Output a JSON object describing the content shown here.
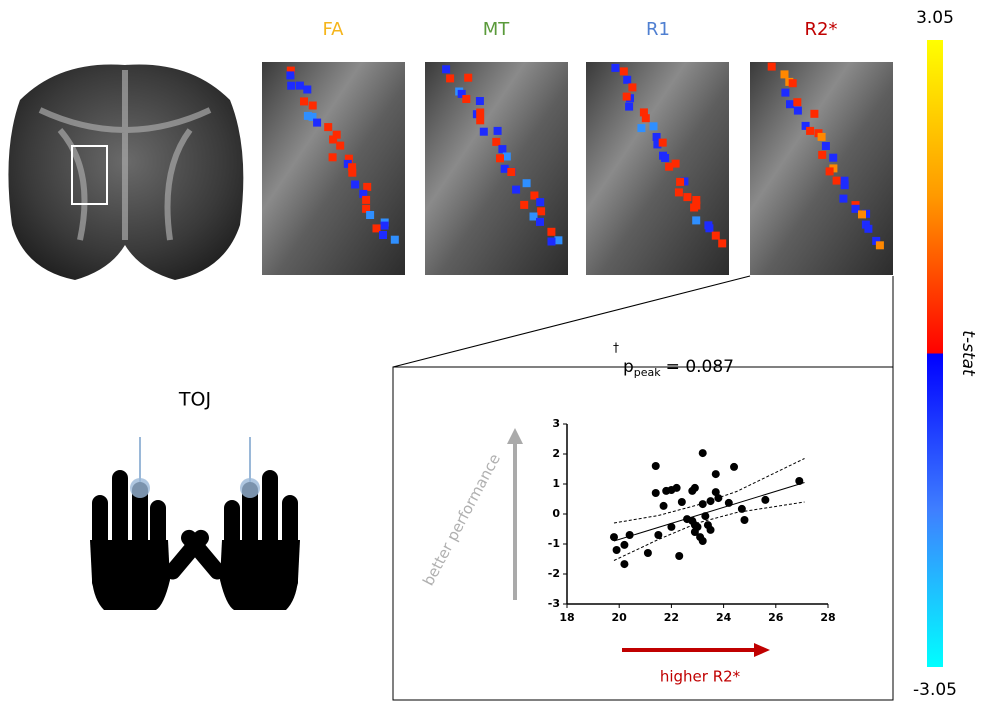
{
  "panels": {
    "fa": "FA",
    "mt": "MT",
    "r1": "R1",
    "r2s": "R2*"
  },
  "colorbar": {
    "max": "3.05",
    "min": "-3.05",
    "label": "t-stat"
  },
  "task": "TOJ",
  "annotation": {
    "dagger": "†",
    "p": "p",
    "sub": "peak",
    "value": "= 0.087"
  },
  "chart_data": {
    "type": "scatter",
    "color": "#000000",
    "y_label": "better performance",
    "x_label": "higher R2*",
    "x": [
      19.8,
      19.9,
      20.2,
      20.2,
      20.4,
      21.1,
      21.4,
      21.4,
      21.5,
      21.7,
      21.8,
      22.0,
      22.2,
      22.0,
      22.3,
      22.4,
      22.6,
      22.8,
      22.8,
      22.9,
      22.9,
      22.9,
      23.0,
      23.1,
      23.2,
      23.2,
      23.3,
      23.4,
      23.2,
      23.5,
      23.5,
      23.7,
      23.7,
      23.8,
      24.2,
      24.4,
      24.7,
      24.8,
      25.6,
      26.9
    ],
    "values": [
      -0.77,
      -1.2,
      -1.03,
      -1.67,
      -0.7,
      -1.3,
      1.6,
      0.7,
      -0.7,
      0.27,
      0.77,
      0.8,
      0.87,
      -0.43,
      -1.4,
      0.4,
      -0.17,
      -0.23,
      0.77,
      0.87,
      -0.37,
      -0.6,
      -0.43,
      -0.77,
      2.03,
      0.33,
      -0.07,
      -0.37,
      -0.9,
      -0.53,
      0.43,
      1.33,
      0.73,
      0.53,
      0.37,
      1.57,
      0.17,
      -0.2,
      0.47,
      1.1
    ],
    "fit": {
      "x": [
        19.8,
        27.1
      ],
      "y": [
        -0.9,
        1.05
      ]
    },
    "ci_upper": {
      "x": [
        19.8,
        21.5,
        23.0,
        24.5,
        27.1
      ],
      "y": [
        -0.3,
        -0.05,
        0.3,
        0.75,
        1.85
      ]
    },
    "ci_lower": {
      "x": [
        19.8,
        21.5,
        23.0,
        24.5,
        27.1
      ],
      "y": [
        -1.55,
        -0.85,
        -0.3,
        0.05,
        0.4
      ]
    },
    "xlim": [
      18,
      28
    ],
    "xticks": [
      18,
      20,
      22,
      24,
      26,
      28
    ],
    "ylim": [
      -3,
      3
    ],
    "yticks": [
      -3,
      -2,
      -1,
      0,
      1,
      2,
      3
    ]
  }
}
